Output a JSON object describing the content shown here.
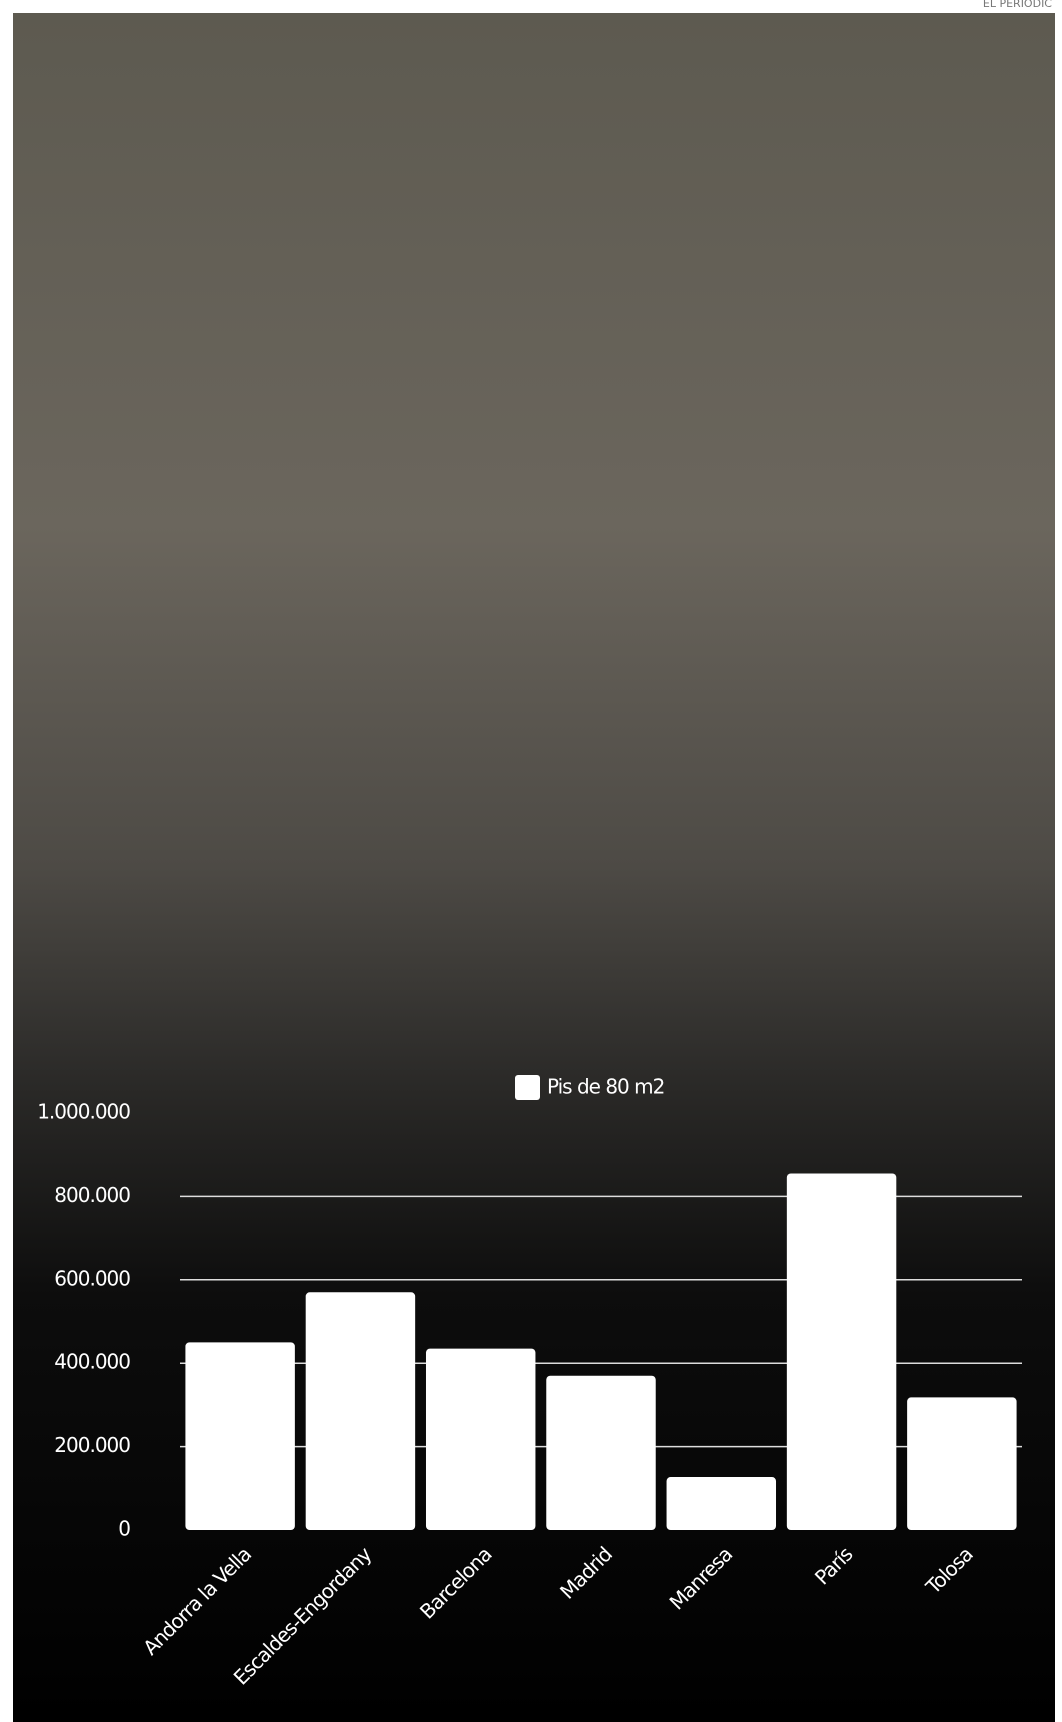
{
  "credit": "EL PERIÓDIC",
  "chart_data": {
    "type": "bar",
    "legend": "Pis de 80 m2",
    "categories": [
      "Andorra la Vella",
      "Escaldes-Engordany",
      "Barcelona",
      "Madrid",
      "Manresa",
      "París",
      "Tolosa"
    ],
    "values": [
      450000,
      570000,
      435000,
      370000,
      127000,
      855000,
      318000
    ],
    "color": "#ffffff",
    "ylim": [
      0,
      1000000
    ],
    "yticks": [
      0,
      {
        "value": 200000,
        "label": "200.000"
      },
      {
        "value": 400000,
        "label": "400.000"
      },
      {
        "value": 600000,
        "label": "600.000"
      },
      {
        "value": 800000,
        "label": "800.000"
      },
      {
        "value": 1000000,
        "label": "1.000.000"
      }
    ],
    "grid": true
  }
}
